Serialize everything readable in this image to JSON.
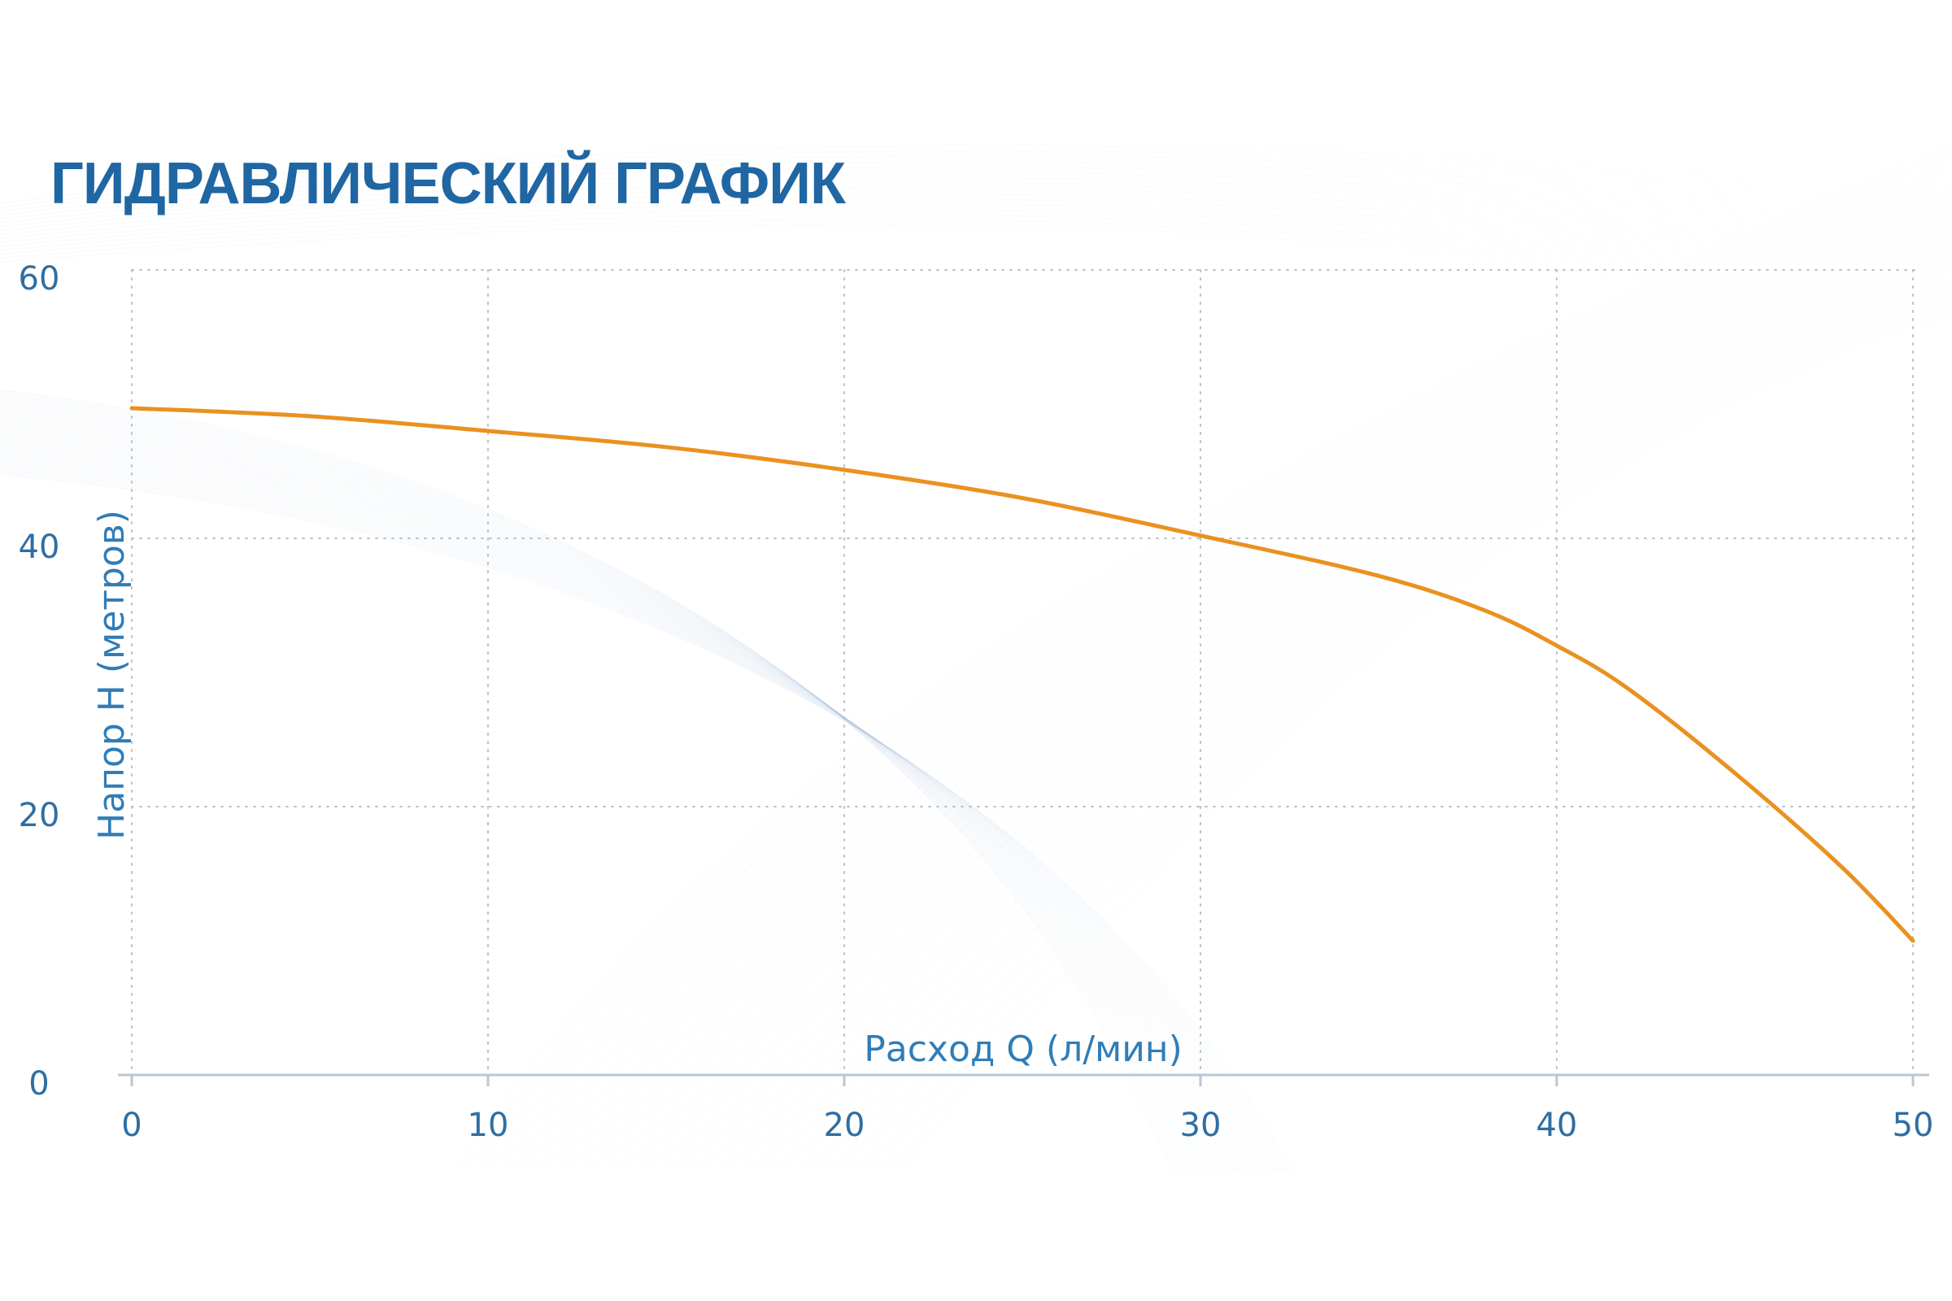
{
  "colors": {
    "title": "#1f66a3",
    "tick_labels": "#2e6ea3",
    "axis_titles": "#2f7db8",
    "grid": "#b7c2cc",
    "axis_line": "#b9c7d4",
    "curve": "#ea9120",
    "swoosh": "#6f9fc7"
  },
  "chart_data": {
    "type": "line",
    "title": "ГИДРАВЛИЧЕСКИЙ ГРАФИК",
    "xlabel": "Расход Q (л/мин)",
    "ylabel": "Напор H (метров)",
    "xlim": [
      0,
      50
    ],
    "ylim": [
      0,
      60
    ],
    "x_ticks": [
      "0",
      "10",
      "20",
      "30",
      "40",
      "50"
    ],
    "y_ticks": [
      "0",
      "20",
      "40",
      "60"
    ],
    "grid": true,
    "grid_style": "dotted",
    "legend": "none",
    "series": [
      {
        "x": [
          0,
          5,
          10,
          15,
          20,
          25,
          30,
          35,
          38,
          40,
          42,
          45,
          48,
          50
        ],
        "y": [
          49.7,
          49.1,
          48,
          46.8,
          45.1,
          43,
          40.2,
          37.2,
          34.6,
          32,
          28.8,
          22.5,
          15.5,
          10
        ]
      }
    ]
  }
}
